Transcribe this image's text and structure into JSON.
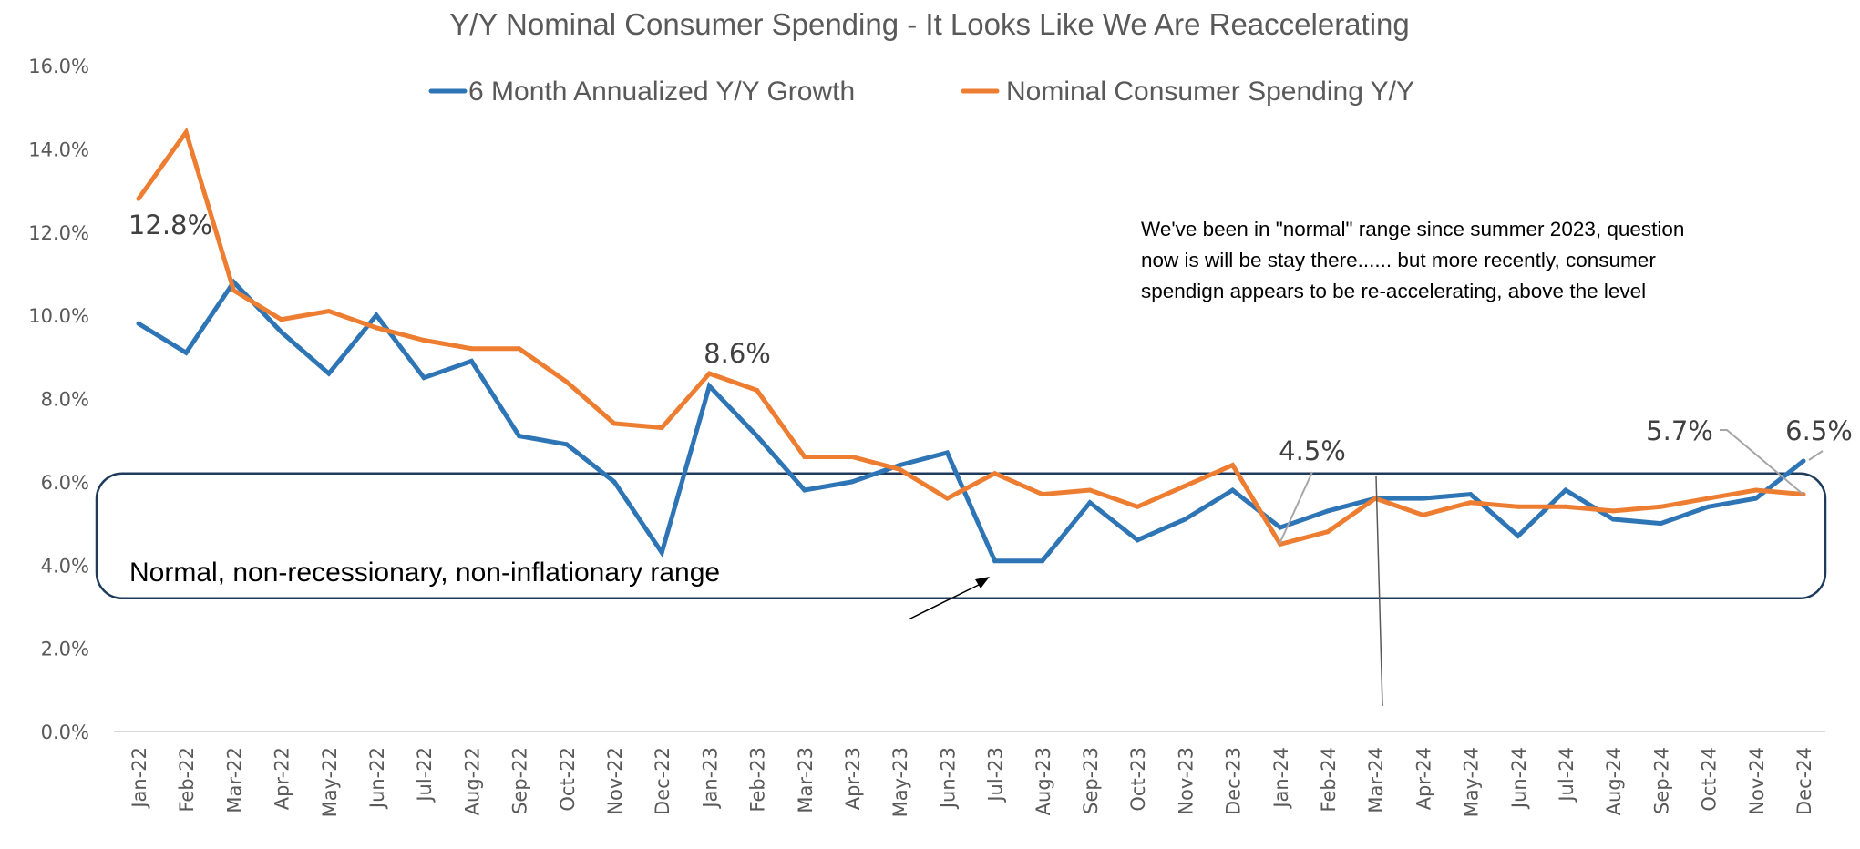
{
  "chart_data": {
    "type": "line",
    "title": "Y/Y Nominal Consumer Spending - It Looks Like We Are Reaccelerating",
    "xlabel": "",
    "ylabel": "",
    "ylim": [
      0,
      16
    ],
    "yticks": [
      0,
      2,
      4,
      6,
      8,
      10,
      12,
      14,
      16
    ],
    "ytick_labels": [
      "0.0%",
      "2.0%",
      "4.0%",
      "6.0%",
      "8.0%",
      "10.0%",
      "12.0%",
      "14.0%",
      "16.0%"
    ],
    "grid": false,
    "legend_position": "top-center",
    "categories": [
      "Jan-22",
      "Feb-22",
      "Mar-22",
      "Apr-22",
      "May-22",
      "Jun-22",
      "Jul-22",
      "Aug-22",
      "Sep-22",
      "Oct-22",
      "Nov-22",
      "Dec-22",
      "Jan-23",
      "Feb-23",
      "Mar-23",
      "Apr-23",
      "May-23",
      "Jun-23",
      "Jul-23",
      "Aug-23",
      "Sep-23",
      "Oct-23",
      "Nov-23",
      "Dec-23",
      "Jan-24",
      "Feb-24",
      "Mar-24",
      "Apr-24",
      "May-24",
      "Jun-24",
      "Jul-24",
      "Aug-24",
      "Sep-24",
      "Oct-24",
      "Nov-24",
      "Dec-24"
    ],
    "series": [
      {
        "name": "6 Month Annualized Y/Y Growth",
        "color": "#2E75B6",
        "values": [
          9.8,
          9.1,
          10.8,
          9.6,
          8.6,
          10.0,
          8.5,
          8.9,
          7.1,
          6.9,
          6.0,
          4.3,
          8.3,
          7.1,
          5.8,
          6.0,
          6.4,
          6.7,
          4.1,
          4.1,
          5.5,
          4.6,
          5.1,
          5.8,
          4.9,
          5.3,
          5.6,
          5.6,
          5.7,
          4.7,
          5.8,
          5.1,
          5.0,
          5.4,
          5.6,
          6.5
        ]
      },
      {
        "name": "Nominal Consumer Spending Y/Y",
        "color": "#ED7D31",
        "values": [
          12.8,
          14.4,
          10.6,
          9.9,
          10.1,
          9.7,
          9.4,
          9.2,
          9.2,
          8.4,
          7.4,
          7.3,
          8.6,
          8.2,
          6.6,
          6.6,
          6.3,
          5.6,
          6.2,
          5.7,
          5.8,
          5.4,
          5.9,
          6.4,
          4.5,
          4.8,
          5.6,
          5.2,
          5.5,
          5.4,
          5.4,
          5.3,
          5.4,
          5.6,
          5.8,
          5.7
        ]
      }
    ],
    "data_labels": [
      {
        "series": 1,
        "category": "Jan-22",
        "text": "12.8%"
      },
      {
        "series": 1,
        "category": "Jan-23",
        "text": "8.6%"
      },
      {
        "series": 1,
        "category": "Jan-24",
        "text": "4.5%"
      },
      {
        "series": 1,
        "category": "Dec-24",
        "text": "5.7%"
      },
      {
        "series": 0,
        "category": "Dec-24",
        "text": "6.5%"
      }
    ],
    "annotations": {
      "range_box": {
        "label": "Normal, non-recessionary, non-inflationary range",
        "y_range": [
          3.2,
          6.2
        ],
        "border_color": "#1F3B5C"
      },
      "note_lines": [
        "We've been in \"normal\" range since summer 2023, question",
        "now is will be stay there......  but more recently, consumer",
        "spendign appears to be re-accelerating, above the level"
      ]
    }
  }
}
